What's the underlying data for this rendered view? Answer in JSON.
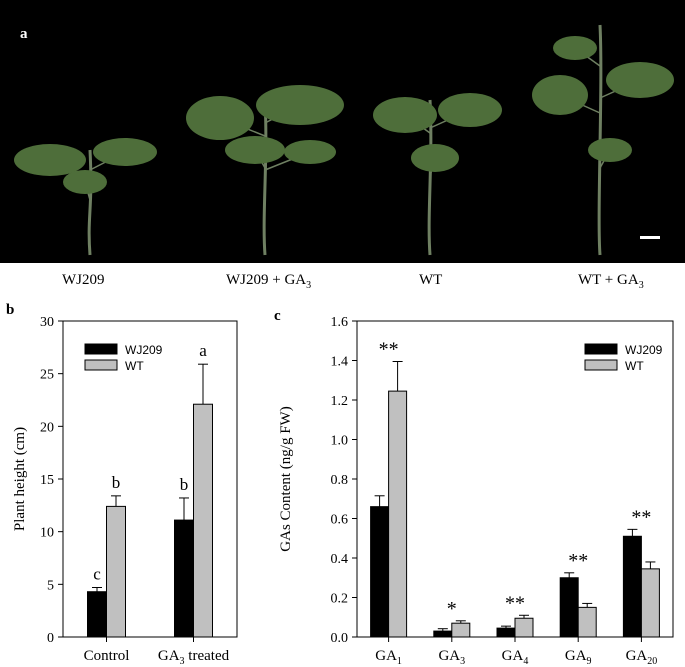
{
  "panel_a": {
    "letter": "a",
    "captions": [
      {
        "text": "WJ209",
        "sub": ""
      },
      {
        "text": "WJ209 + GA",
        "sub": "3"
      },
      {
        "text": "WT",
        "sub": ""
      },
      {
        "text": "WT + GA",
        "sub": "3"
      }
    ],
    "colors": {
      "background": "#000000",
      "leaf": "#4e6e3a",
      "stem": "#6f8062"
    }
  },
  "chart_data": [
    {
      "panel": "b",
      "type": "bar",
      "ylabel": "Plant height (cm)",
      "xlabel": "",
      "ylim": [
        0,
        30
      ],
      "yticks": [
        0,
        5,
        10,
        15,
        20,
        25,
        30
      ],
      "categories": [
        {
          "text": "Control",
          "sub": ""
        },
        {
          "text": "GA",
          "sub": "3",
          "suffix": " treated"
        }
      ],
      "series": [
        {
          "name": "WJ209",
          "color": "#000000",
          "values": [
            4.3,
            11.1
          ],
          "errors": [
            0.4,
            2.1
          ],
          "labels": [
            "c",
            "b"
          ]
        },
        {
          "name": "WT",
          "color": "#c0c0c0",
          "values": [
            12.4,
            22.1
          ],
          "errors": [
            1.0,
            3.8
          ],
          "labels": [
            "b",
            "a"
          ]
        }
      ],
      "legend": "top-left",
      "grid": false
    },
    {
      "panel": "c",
      "type": "bar",
      "ylabel": "GAs Content (ng/g FW)",
      "xlabel": "",
      "ylim": [
        0,
        1.6
      ],
      "yticks": [
        "0.0",
        "0.2",
        "0.4",
        "0.6",
        "0.8",
        "1.0",
        "1.2",
        "1.4",
        "1.6"
      ],
      "categories": [
        {
          "text": "GA",
          "sub": "1"
        },
        {
          "text": "GA",
          "sub": "3"
        },
        {
          "text": "GA",
          "sub": "4"
        },
        {
          "text": "GA",
          "sub": "9"
        },
        {
          "text": "GA",
          "sub": "20"
        }
      ],
      "series": [
        {
          "name": "WJ209",
          "color": "#000000",
          "values": [
            0.66,
            0.03,
            0.045,
            0.3,
            0.51
          ],
          "errors": [
            0.055,
            0.012,
            0.01,
            0.025,
            0.035
          ]
        },
        {
          "name": "WT",
          "color": "#c0c0c0",
          "values": [
            1.245,
            0.07,
            0.095,
            0.15,
            0.345
          ],
          "errors": [
            0.15,
            0.012,
            0.015,
            0.02,
            0.035
          ]
        }
      ],
      "significance": [
        "**",
        "*",
        "**",
        "**",
        "**"
      ],
      "legend": "top-right",
      "grid": false
    }
  ]
}
